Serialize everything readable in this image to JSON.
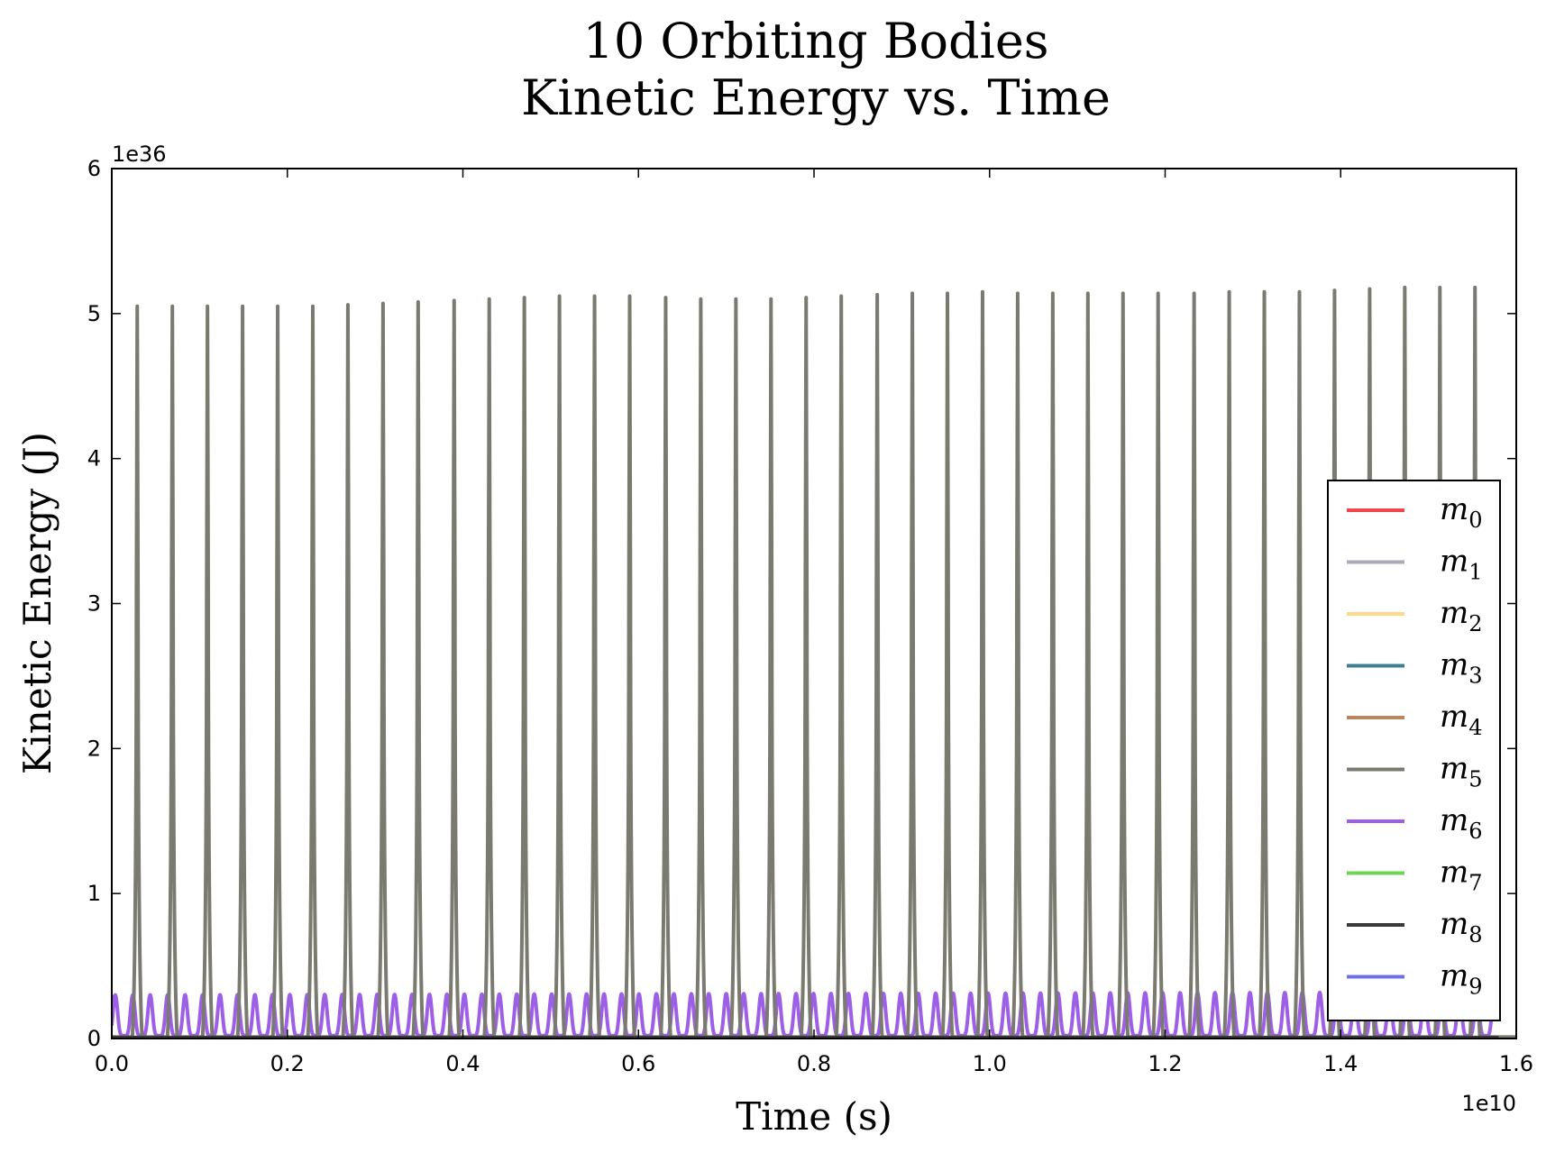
{
  "chart_data": {
    "type": "line",
    "title_lines": [
      "10 Orbiting Bodies",
      "Kinetic Energy vs. Time"
    ],
    "xlabel": "Time (s)",
    "ylabel": "Kinetic Energy (J)",
    "x_multiplier_label": "1e10",
    "y_multiplier_label": "1e36",
    "xlim": [
      0.0,
      1.6
    ],
    "ylim": [
      0,
      6
    ],
    "x_ticks": [
      "0.0",
      "0.2",
      "0.4",
      "0.6",
      "0.8",
      "1.0",
      "1.2",
      "1.4",
      "1.6"
    ],
    "y_ticks": [
      "0",
      "1",
      "2",
      "3",
      "4",
      "5",
      "6"
    ],
    "grid": false,
    "legend_position": "center-right",
    "series": [
      {
        "name": "m",
        "sub": "0",
        "color": "#f0474f",
        "baseline": 0.0
      },
      {
        "name": "m",
        "sub": "1",
        "color": "#aaaab8",
        "baseline": 0.0
      },
      {
        "name": "m",
        "sub": "2",
        "color": "#ffd98a",
        "baseline": 0.0
      },
      {
        "name": "m",
        "sub": "3",
        "color": "#3e7f93",
        "baseline": 0.0
      },
      {
        "name": "m",
        "sub": "4",
        "color": "#b8855e",
        "baseline": 0.0
      },
      {
        "name": "m",
        "sub": "5",
        "color": "#7a7a70",
        "baseline": 0.01,
        "peak_x": [
          0.029,
          0.069,
          0.109,
          0.149,
          0.189,
          0.229,
          0.269,
          0.309,
          0.349,
          0.39,
          0.43,
          0.47,
          0.51,
          0.55,
          0.59,
          0.631,
          0.671,
          0.711,
          0.751,
          0.791,
          0.831,
          0.872,
          0.912,
          0.952,
          0.992,
          1.032,
          1.072,
          1.112,
          1.152,
          1.192,
          1.233,
          1.273,
          1.313,
          1.353,
          1.393,
          1.433,
          1.473,
          1.513,
          1.553
        ],
        "peak_y": [
          5.05,
          5.05,
          5.05,
          5.05,
          5.05,
          5.05,
          5.06,
          5.07,
          5.08,
          5.09,
          5.1,
          5.11,
          5.12,
          5.12,
          5.12,
          5.11,
          5.1,
          5.1,
          5.1,
          5.11,
          5.12,
          5.13,
          5.14,
          5.14,
          5.15,
          5.14,
          5.14,
          5.14,
          5.14,
          5.14,
          5.14,
          5.15,
          5.15,
          5.15,
          5.16,
          5.17,
          5.18,
          5.18,
          5.18
        ]
      },
      {
        "name": "m",
        "sub": "6",
        "color": "#9c5fe6",
        "baseline": 0.02,
        "peak_x_start": 0.004,
        "peak_x_end": 1.575,
        "peak_count": 80,
        "peak_y_start": 0.3,
        "peak_y_end": 0.32
      },
      {
        "name": "m",
        "sub": "7",
        "color": "#6fd655",
        "baseline": 0.0
      },
      {
        "name": "m",
        "sub": "8",
        "color": "#3a3a3a",
        "baseline": 0.01
      },
      {
        "name": "m",
        "sub": "9",
        "color": "#6f6fea",
        "baseline": 0.0
      }
    ]
  }
}
